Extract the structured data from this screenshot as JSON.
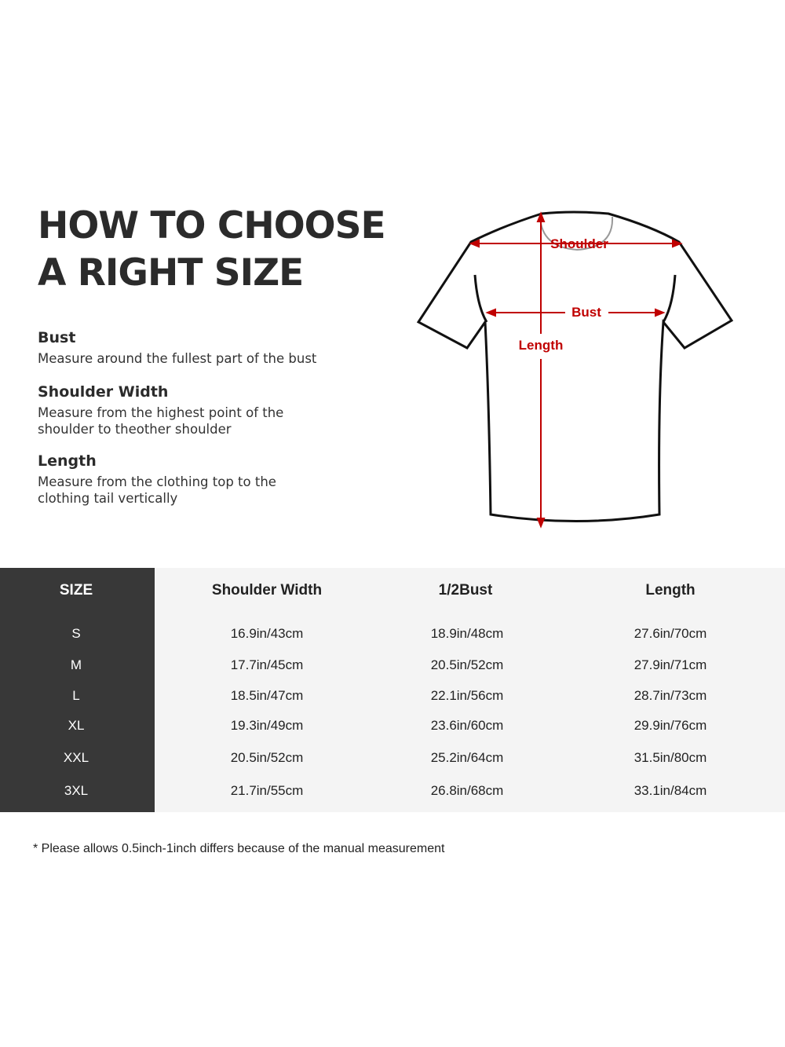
{
  "title": {
    "line1": "HOW TO CHOOSE",
    "line2": "A RIGHT SIZE"
  },
  "guide": [
    {
      "heading": "Bust",
      "text": "Measure around the fullest part of the bust"
    },
    {
      "heading": "Shoulder Width",
      "text": "Measure from the highest point of the shoulder to theother shoulder"
    },
    {
      "heading": "Length",
      "text": "Measure from the clothing top to the clothing tail vertically"
    }
  ],
  "diagram": {
    "shoulder": "Shoulder",
    "bust": "Bust",
    "length": "Length",
    "accent": "#c00000"
  },
  "table": {
    "headers": [
      "SIZE",
      "Shoulder Width",
      "1/2Bust",
      "Length"
    ],
    "rows": [
      [
        "S",
        "16.9in/43cm",
        "18.9in/48cm",
        "27.6in/70cm"
      ],
      [
        "M",
        "17.7in/45cm",
        "20.5in/52cm",
        "27.9in/71cm"
      ],
      [
        "L",
        "18.5in/47cm",
        "22.1in/56cm",
        "28.7in/73cm"
      ],
      [
        "XL",
        "19.3in/49cm",
        "23.6in/60cm",
        "29.9in/76cm"
      ],
      [
        "XXL",
        "20.5in/52cm",
        "25.2in/64cm",
        "31.5in/80cm"
      ],
      [
        "3XL",
        "21.7in/55cm",
        "26.8in/68cm",
        "33.1in/84cm"
      ]
    ]
  },
  "note": "* Please allows 0.5inch-1inch differs because of the  manual measurement"
}
